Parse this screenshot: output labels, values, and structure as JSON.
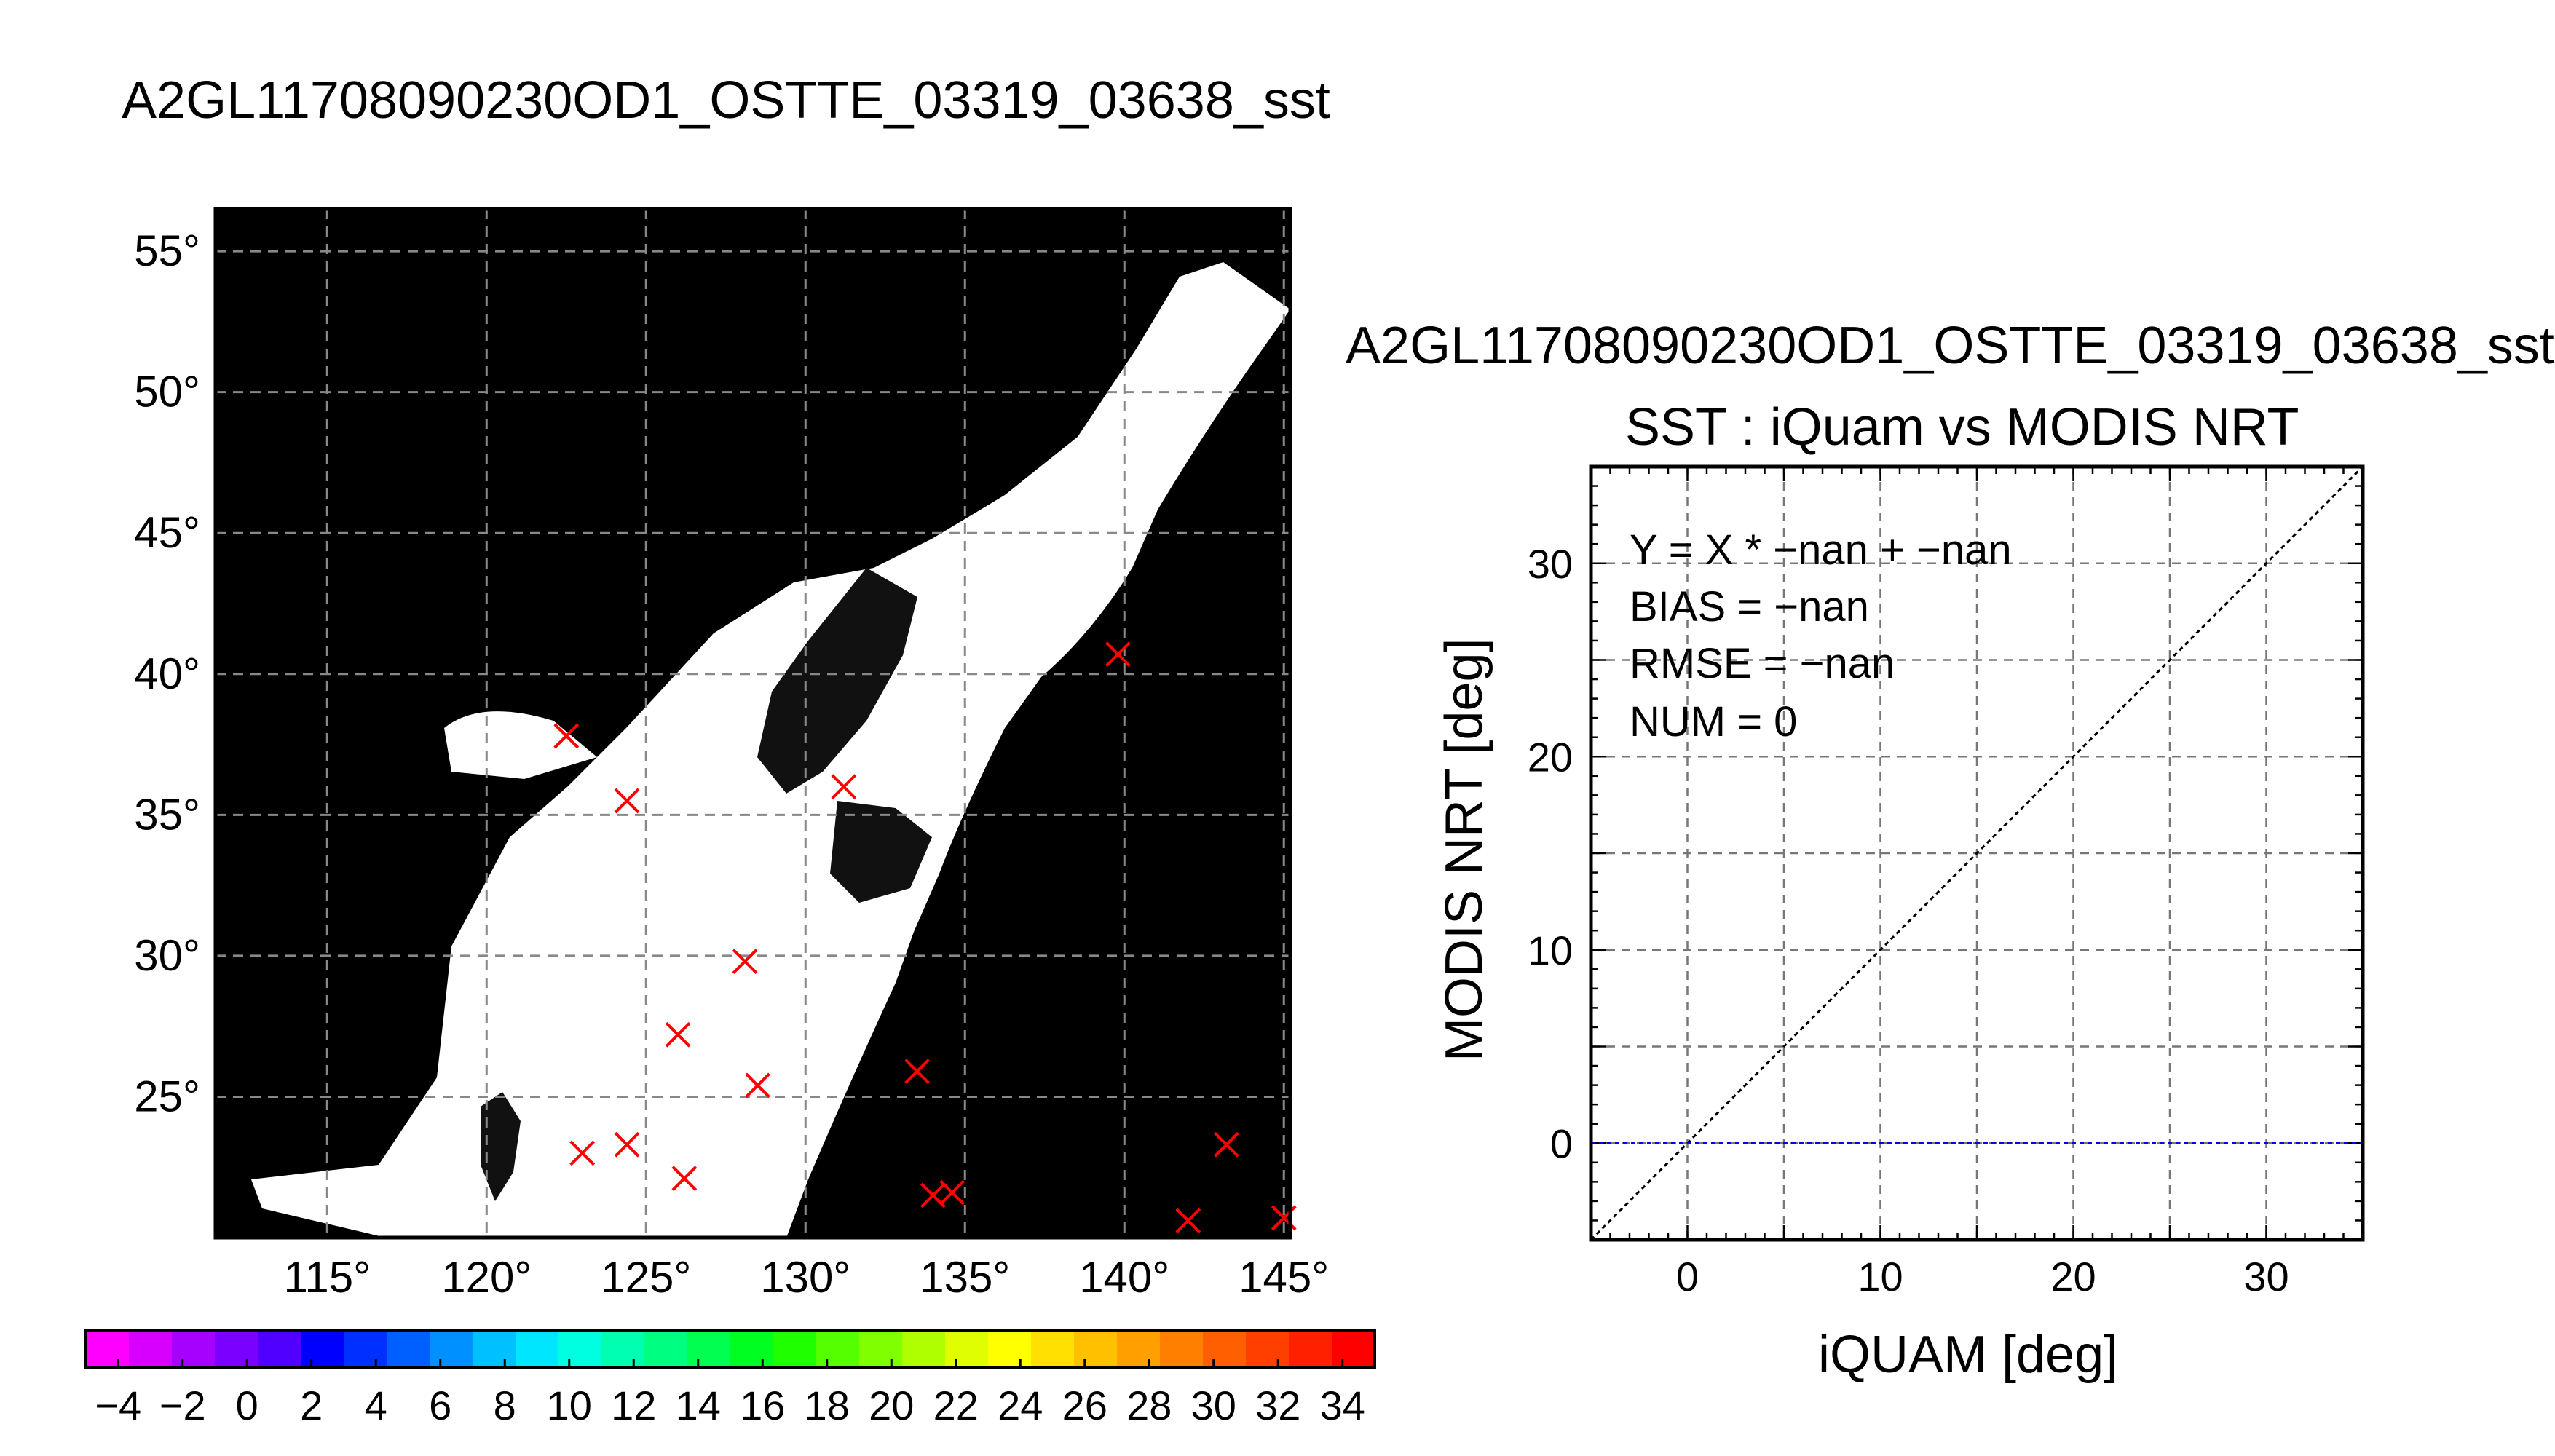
{
  "main_title": "A2GL11708090230OD1_OSTTE_03319_03638_sst",
  "scatter_title": "A2GL11708090230OD1_OSTTE_03319_03638_sst",
  "colors": {
    "map_background": "#000000",
    "marker": "#ff0000",
    "bias_line": "#0000ff",
    "identity_line": "#000000"
  },
  "chart_data": [
    {
      "type": "map",
      "lon_ticks": [
        "115°",
        "120°",
        "125°",
        "130°",
        "135°",
        "140°",
        "145°"
      ],
      "lon_values": [
        115,
        120,
        125,
        130,
        135,
        140,
        145
      ],
      "lat_ticks": [
        "55°",
        "50°",
        "45°",
        "40°",
        "35°",
        "30°",
        "25°"
      ],
      "lat_values": [
        55,
        50,
        45,
        40,
        35,
        30,
        25
      ],
      "lon_range": [
        111.5,
        145.2
      ],
      "lat_range": [
        20,
        56.5
      ],
      "grid": true,
      "matchup_markers": [
        {
          "lon": 122.5,
          "lat": 37.8
        },
        {
          "lon": 124.4,
          "lat": 35.5
        },
        {
          "lon": 131.2,
          "lat": 36.0
        },
        {
          "lon": 139.8,
          "lat": 40.7
        },
        {
          "lon": 128.1,
          "lat": 29.8
        },
        {
          "lon": 126.0,
          "lat": 27.2
        },
        {
          "lon": 128.5,
          "lat": 25.4
        },
        {
          "lon": 133.5,
          "lat": 25.9
        },
        {
          "lon": 123.0,
          "lat": 23.0
        },
        {
          "lon": 124.4,
          "lat": 23.3
        },
        {
          "lon": 126.2,
          "lat": 22.1
        },
        {
          "lon": 134.0,
          "lat": 21.5
        },
        {
          "lon": 134.6,
          "lat": 21.6
        },
        {
          "lon": 142.0,
          "lat": 20.6
        },
        {
          "lon": 143.2,
          "lat": 23.3
        },
        {
          "lon": 145.0,
          "lat": 20.7
        }
      ]
    },
    {
      "type": "colorbar",
      "tick_labels": [
        "−4",
        "−2",
        "0",
        "2",
        "4",
        "6",
        "8",
        "10",
        "12",
        "14",
        "16",
        "18",
        "20",
        "22",
        "24",
        "26",
        "28",
        "30",
        "32",
        "34"
      ],
      "range": [
        -5,
        35
      ],
      "colors": [
        "#ff00ff",
        "#d700ff",
        "#a600ff",
        "#7a00ff",
        "#4f00ff",
        "#0000ff",
        "#0030ff",
        "#0060ff",
        "#0090ff",
        "#00c0ff",
        "#00e6ff",
        "#00ffe0",
        "#00ffb0",
        "#00ff80",
        "#00ff50",
        "#00ff20",
        "#20ff00",
        "#55ff00",
        "#80ff00",
        "#b0ff00",
        "#dfff00",
        "#ffff00",
        "#ffe000",
        "#ffc000",
        "#ffa000",
        "#ff7f00",
        "#ff5f00",
        "#ff3f00",
        "#ff2000",
        "#ff0000"
      ]
    },
    {
      "type": "scatter",
      "title": "SST : iQuam vs MODIS NRT",
      "xlabel": "iQUAM [deg]",
      "ylabel": "MODIS NRT [deg]",
      "xlim": [
        -5,
        35
      ],
      "ylim": [
        -5,
        35
      ],
      "x_ticks": [
        0,
        10,
        20,
        30
      ],
      "y_ticks": [
        0,
        10,
        20,
        30
      ],
      "grid": true,
      "points": [],
      "identity_line": [
        [
          -5,
          -5
        ],
        [
          35,
          35
        ]
      ],
      "bias_line_y": 0,
      "stats": {
        "fit": "Y = X * −nan + −nan",
        "bias": "BIAS = −nan",
        "rmse": "RMSE = −nan",
        "num": "NUM = 0"
      }
    }
  ]
}
